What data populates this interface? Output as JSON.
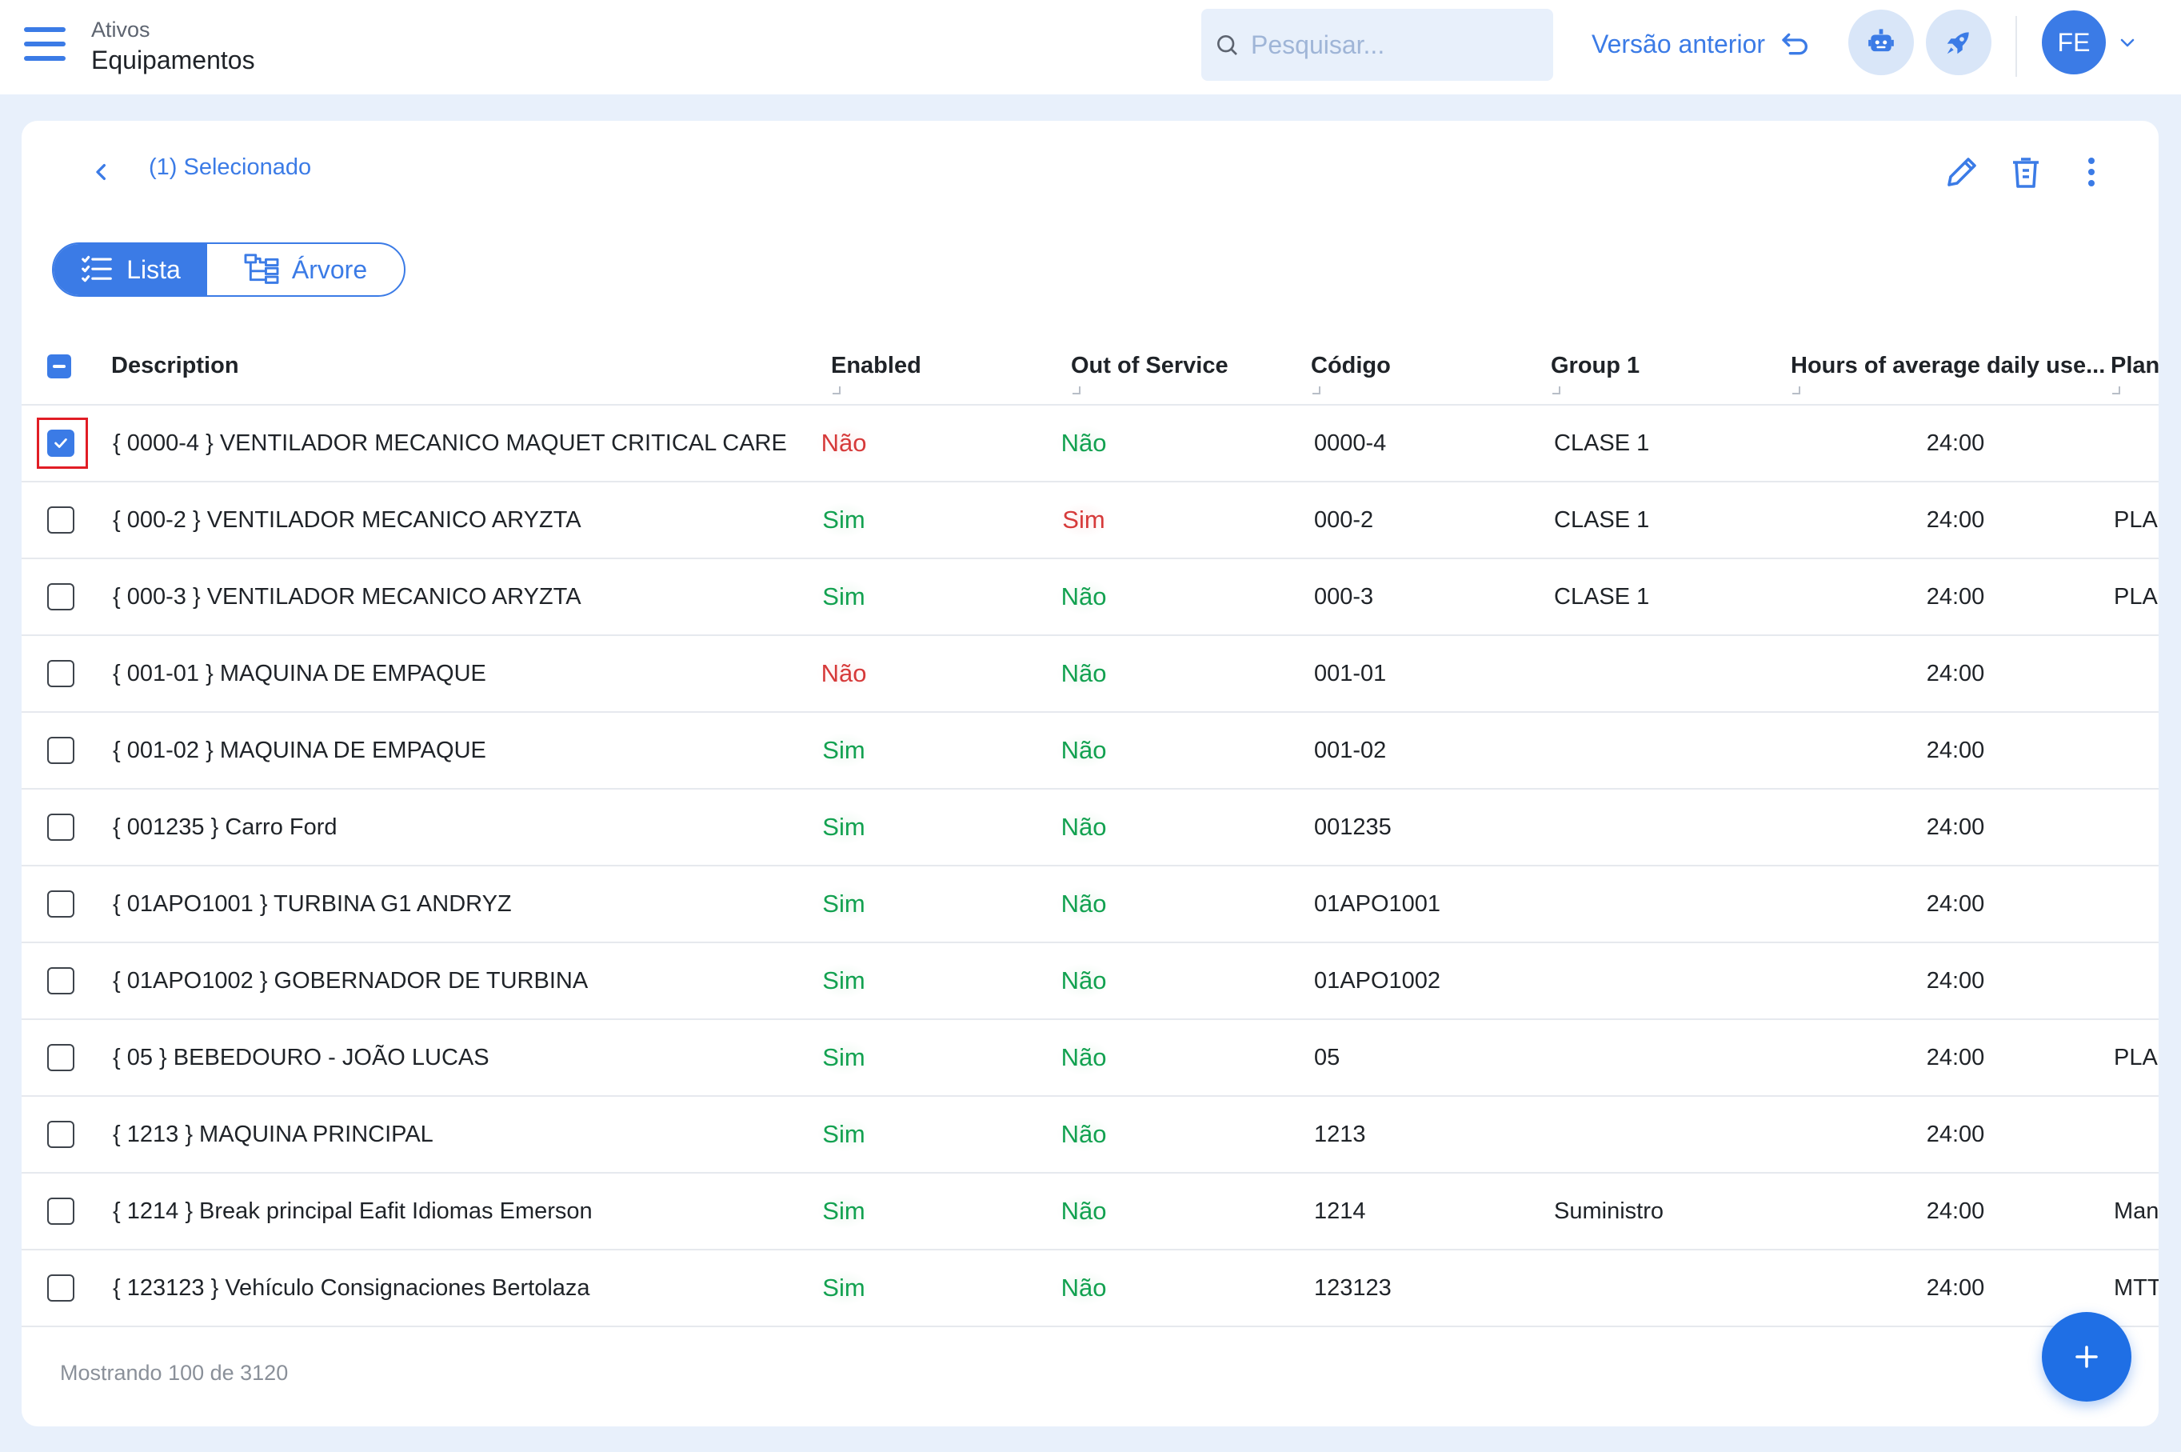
{
  "header": {
    "breadcrumb_parent": "Ativos",
    "title": "Equipamentos",
    "search_placeholder": "Pesquisar...",
    "previous_version_label": "Versão anterior",
    "avatar_initials": "FE"
  },
  "toolbar": {
    "selected_label": "(1) Selecionado"
  },
  "view_toggle": {
    "list_label": "Lista",
    "tree_label": "Árvore",
    "active": "list"
  },
  "table": {
    "columns": {
      "description": "Description",
      "enabled": "Enabled",
      "out_of_service": "Out of Service",
      "codigo": "Código",
      "group1": "Group 1",
      "hours": "Hours of average daily use...",
      "plan": "Plan"
    },
    "rows": [
      {
        "selected": true,
        "description": "{ 0000-4 } VENTILADOR MECANICO MAQUET CRITICAL CARE",
        "enabled": "Não",
        "out_of_service": "Não",
        "codigo": "0000-4",
        "group1": "CLASE 1",
        "hours": "24:00",
        "plan": ""
      },
      {
        "selected": false,
        "description": "{ 000-2 } VENTILADOR MECANICO ARYZTA",
        "enabled": "Sim",
        "out_of_service": "Sim",
        "codigo": "000-2",
        "group1": "CLASE 1",
        "hours": "24:00",
        "plan": "PLA"
      },
      {
        "selected": false,
        "description": "{ 000-3 } VENTILADOR MECANICO ARYZTA",
        "enabled": "Sim",
        "out_of_service": "Não",
        "codigo": "000-3",
        "group1": "CLASE 1",
        "hours": "24:00",
        "plan": "PLA"
      },
      {
        "selected": false,
        "description": "{ 001-01 } MAQUINA DE EMPAQUE",
        "enabled": "Não",
        "out_of_service": "Não",
        "codigo": "001-01",
        "group1": "",
        "hours": "24:00",
        "plan": ""
      },
      {
        "selected": false,
        "description": "{ 001-02 } MAQUINA DE EMPAQUE",
        "enabled": "Sim",
        "out_of_service": "Não",
        "codigo": "001-02",
        "group1": "",
        "hours": "24:00",
        "plan": ""
      },
      {
        "selected": false,
        "description": "{ 001235 } Carro Ford",
        "enabled": "Sim",
        "out_of_service": "Não",
        "codigo": "001235",
        "group1": "",
        "hours": "24:00",
        "plan": ""
      },
      {
        "selected": false,
        "description": "{ 01APO1001 } TURBINA G1 ANDRYZ",
        "enabled": "Sim",
        "out_of_service": "Não",
        "codigo": "01APO1001",
        "group1": "",
        "hours": "24:00",
        "plan": ""
      },
      {
        "selected": false,
        "description": "{ 01APO1002 } GOBERNADOR DE TURBINA",
        "enabled": "Sim",
        "out_of_service": "Não",
        "codigo": "01APO1002",
        "group1": "",
        "hours": "24:00",
        "plan": ""
      },
      {
        "selected": false,
        "description": "{ 05 } BEBEDOURO - JOÃO LUCAS",
        "enabled": "Sim",
        "out_of_service": "Não",
        "codigo": "05",
        "group1": "",
        "hours": "24:00",
        "plan": "PLA"
      },
      {
        "selected": false,
        "description": "{ 1213 } MAQUINA PRINCIPAL",
        "enabled": "Sim",
        "out_of_service": "Não",
        "codigo": "1213",
        "group1": "",
        "hours": "24:00",
        "plan": ""
      },
      {
        "selected": false,
        "description": "{ 1214 } Break principal Eafit Idiomas Emerson",
        "enabled": "Sim",
        "out_of_service": "Não",
        "codigo": "1214",
        "group1": "Suministro",
        "hours": "24:00",
        "plan": "Man"
      },
      {
        "selected": false,
        "description": "{ 123123 } Vehículo Consignaciones Bertolaza",
        "enabled": "Sim",
        "out_of_service": "Não",
        "codigo": "123123",
        "group1": "",
        "hours": "24:00",
        "plan": "MTT"
      }
    ]
  },
  "footer": {
    "count_label": "Mostrando 100 de 3120"
  },
  "colors": {
    "accent": "#3b7be6",
    "yes_green": "#12a150",
    "no_red": "#d63a3a",
    "page_bg": "#e8f0fb"
  },
  "icons": {
    "menu": "hamburger-icon",
    "search": "search-icon",
    "undo": "undo-arrow-icon",
    "robot": "robot-icon",
    "rocket": "rocket-icon",
    "chevron_down": "chevron-down-icon",
    "back": "chevron-left-icon",
    "edit": "pencil-icon",
    "delete": "trash-icon",
    "more": "more-vertical-icon",
    "list": "list-icon",
    "tree": "tree-icon",
    "add": "plus-icon"
  }
}
